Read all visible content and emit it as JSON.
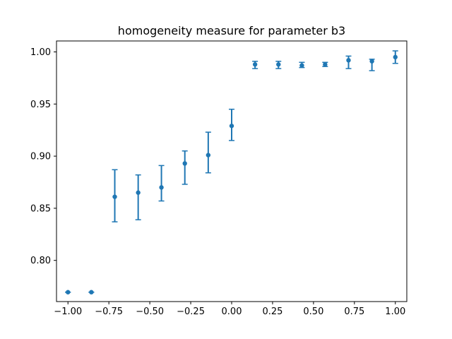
{
  "chart_data": {
    "type": "scatter",
    "title": "homogeneity measure for parameter b3",
    "xlabel": "",
    "ylabel": "",
    "xlim": [
      -1.07,
      1.07
    ],
    "ylim": [
      0.7605,
      1.0105
    ],
    "x_ticks": [
      -1.0,
      -0.75,
      -0.5,
      -0.25,
      0.0,
      0.25,
      0.5,
      0.75,
      1.0
    ],
    "x_tick_labels": [
      "−1.00",
      "−0.75",
      "−0.50",
      "−0.25",
      "0.00",
      "0.25",
      "0.50",
      "0.75",
      "1.00"
    ],
    "y_ticks": [
      0.8,
      0.85,
      0.9,
      0.95,
      1.0
    ],
    "y_tick_labels": [
      "0.80",
      "0.85",
      "0.90",
      "0.95",
      "1.00"
    ],
    "grid": false,
    "color": "#1f77b4",
    "points": [
      {
        "x": -1.0,
        "y": 0.7695,
        "err_low": 0.7695,
        "err_high": 0.7695
      },
      {
        "x": -0.857,
        "y": 0.7695,
        "err_low": 0.7695,
        "err_high": 0.7695
      },
      {
        "x": -0.714,
        "y": 0.861,
        "err_low": 0.837,
        "err_high": 0.887
      },
      {
        "x": -0.571,
        "y": 0.865,
        "err_low": 0.839,
        "err_high": 0.882
      },
      {
        "x": -0.429,
        "y": 0.87,
        "err_low": 0.857,
        "err_high": 0.891
      },
      {
        "x": -0.286,
        "y": 0.893,
        "err_low": 0.873,
        "err_high": 0.905
      },
      {
        "x": -0.143,
        "y": 0.901,
        "err_low": 0.884,
        "err_high": 0.923
      },
      {
        "x": 0.0,
        "y": 0.929,
        "err_low": 0.915,
        "err_high": 0.945
      },
      {
        "x": 0.143,
        "y": 0.988,
        "err_low": 0.984,
        "err_high": 0.991
      },
      {
        "x": 0.286,
        "y": 0.988,
        "err_low": 0.984,
        "err_high": 0.991
      },
      {
        "x": 0.429,
        "y": 0.987,
        "err_low": 0.985,
        "err_high": 0.99
      },
      {
        "x": 0.571,
        "y": 0.988,
        "err_low": 0.986,
        "err_high": 0.99
      },
      {
        "x": 0.714,
        "y": 0.992,
        "err_low": 0.984,
        "err_high": 0.996
      },
      {
        "x": 0.857,
        "y": 0.991,
        "err_low": 0.982,
        "err_high": 0.993
      },
      {
        "x": 1.0,
        "y": 0.995,
        "err_low": 0.989,
        "err_high": 1.001
      }
    ]
  }
}
